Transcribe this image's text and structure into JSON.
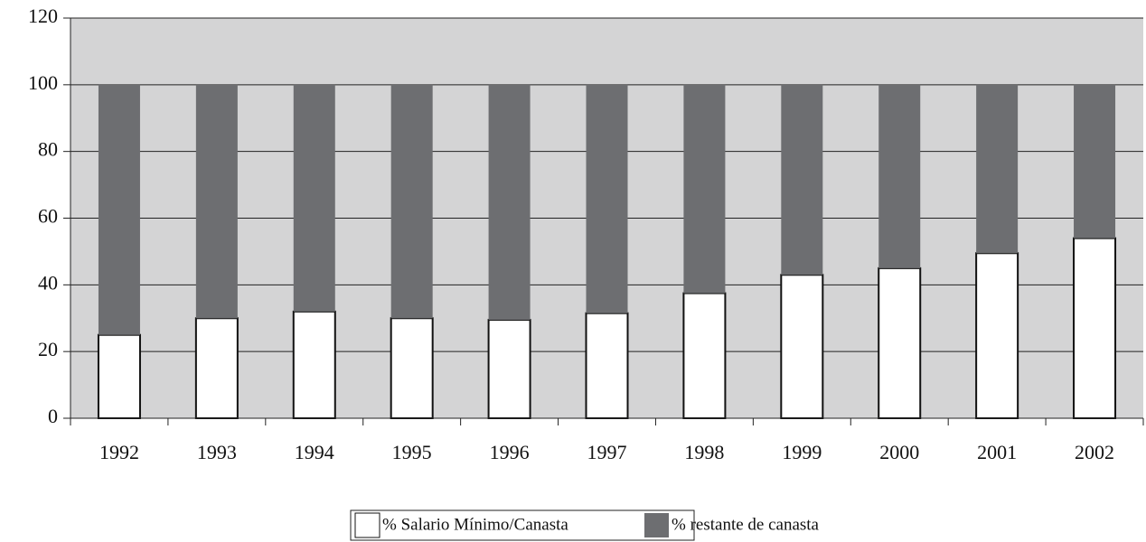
{
  "chart_data": {
    "type": "stacked_bar",
    "categories": [
      "1992",
      "1993",
      "1994",
      "1995",
      "1996",
      "1997",
      "1998",
      "1999",
      "2000",
      "2001",
      "2002"
    ],
    "series": [
      {
        "name": "% Salario Mínimo/Canasta",
        "color": "#ffffff",
        "values": [
          25,
          30,
          32,
          30,
          29.5,
          31.5,
          37.5,
          43,
          45,
          49.5,
          54
        ]
      },
      {
        "name": "% restante de canasta",
        "color": "#6d6e71",
        "values": [
          75,
          70,
          68,
          70,
          70.5,
          68.5,
          62.5,
          57,
          55,
          50.5,
          46
        ]
      }
    ],
    "ylim": [
      0,
      120
    ],
    "yticks": [
      0,
      20,
      40,
      60,
      80,
      100,
      120
    ],
    "grid": true,
    "legend": "bottom"
  }
}
